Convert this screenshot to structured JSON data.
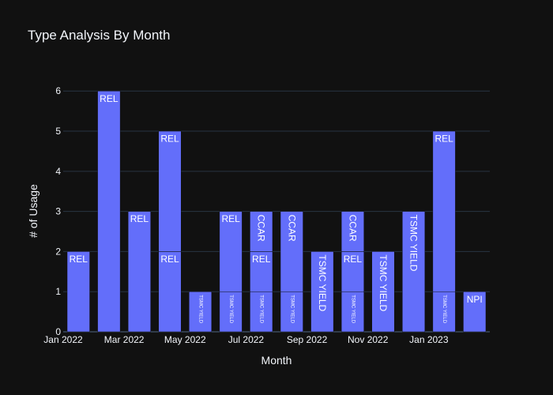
{
  "chart_data": {
    "type": "bar",
    "stacked": true,
    "title": "Type Analysis By Month",
    "xlabel": "Month",
    "ylabel": "# of Usage",
    "ylim": [
      0,
      6.3
    ],
    "yticks": [
      "0",
      "1",
      "2",
      "3",
      "4",
      "5",
      "6"
    ],
    "xticks": [
      {
        "label": "Jan 2022",
        "month_index": 0
      },
      {
        "label": "Mar 2022",
        "month_index": 2
      },
      {
        "label": "May 2022",
        "month_index": 4
      },
      {
        "label": "Jul 2022",
        "month_index": 6
      },
      {
        "label": "Sep 2022",
        "month_index": 8
      },
      {
        "label": "Nov 2022",
        "month_index": 10
      },
      {
        "label": "Jan 2023",
        "month_index": 12
      }
    ],
    "categories": [
      "Jan 2022",
      "Feb 2022",
      "Mar 2022",
      "Apr 2022",
      "May 2022",
      "Jun 2022",
      "Jul 2022",
      "Aug 2022",
      "Sep 2022",
      "Oct 2022",
      "Nov 2022",
      "Dec 2022",
      "Jan 2023",
      "Feb 2023"
    ],
    "grid": true,
    "bar_color": "#636efa",
    "bars": [
      {
        "month": "Jan 2022",
        "segments": [
          {
            "type": "REL",
            "value": 2
          }
        ]
      },
      {
        "month": "Feb 2022",
        "segments": [
          {
            "type": "REL",
            "value": 6
          }
        ]
      },
      {
        "month": "Mar 2022",
        "segments": [
          {
            "type": "REL",
            "value": 3
          }
        ]
      },
      {
        "month": "Apr 2022",
        "segments": [
          {
            "type": "REL",
            "value": 2
          },
          {
            "type": "REL",
            "value": 3
          }
        ]
      },
      {
        "month": "May 2022",
        "segments": [
          {
            "type": "TSMC YIELD",
            "value": 1
          }
        ]
      },
      {
        "month": "Jun 2022",
        "segments": [
          {
            "type": "TSMC YIELD",
            "value": 1
          },
          {
            "type": "REL",
            "value": 2
          }
        ]
      },
      {
        "month": "Jul 2022",
        "segments": [
          {
            "type": "TSMC YIELD",
            "value": 1
          },
          {
            "type": "REL",
            "value": 1
          },
          {
            "type": "CCAR",
            "value": 1
          }
        ]
      },
      {
        "month": "Aug 2022",
        "segments": [
          {
            "type": "TSMC YIELD",
            "value": 1
          },
          {
            "type": "CCAR",
            "value": 2
          }
        ]
      },
      {
        "month": "Sep 2022",
        "segments": [
          {
            "type": "TSMC YIELD",
            "value": 2
          }
        ]
      },
      {
        "month": "Oct 2022",
        "segments": [
          {
            "type": "TSMC YIELD",
            "value": 1
          },
          {
            "type": "REL",
            "value": 1
          },
          {
            "type": "CCAR",
            "value": 1
          }
        ]
      },
      {
        "month": "Nov 2022",
        "segments": [
          {
            "type": "TSMC YIELD",
            "value": 2
          }
        ]
      },
      {
        "month": "Dec 2022",
        "segments": [
          {
            "type": "TSMC YIELD",
            "value": 3
          }
        ]
      },
      {
        "month": "Jan 2023",
        "segments": [
          {
            "type": "TSMC YIELD",
            "value": 1
          },
          {
            "type": "REL",
            "value": 4
          }
        ]
      },
      {
        "month": "Feb 2023",
        "segments": [
          {
            "type": "NPI",
            "value": 1
          }
        ]
      }
    ]
  }
}
